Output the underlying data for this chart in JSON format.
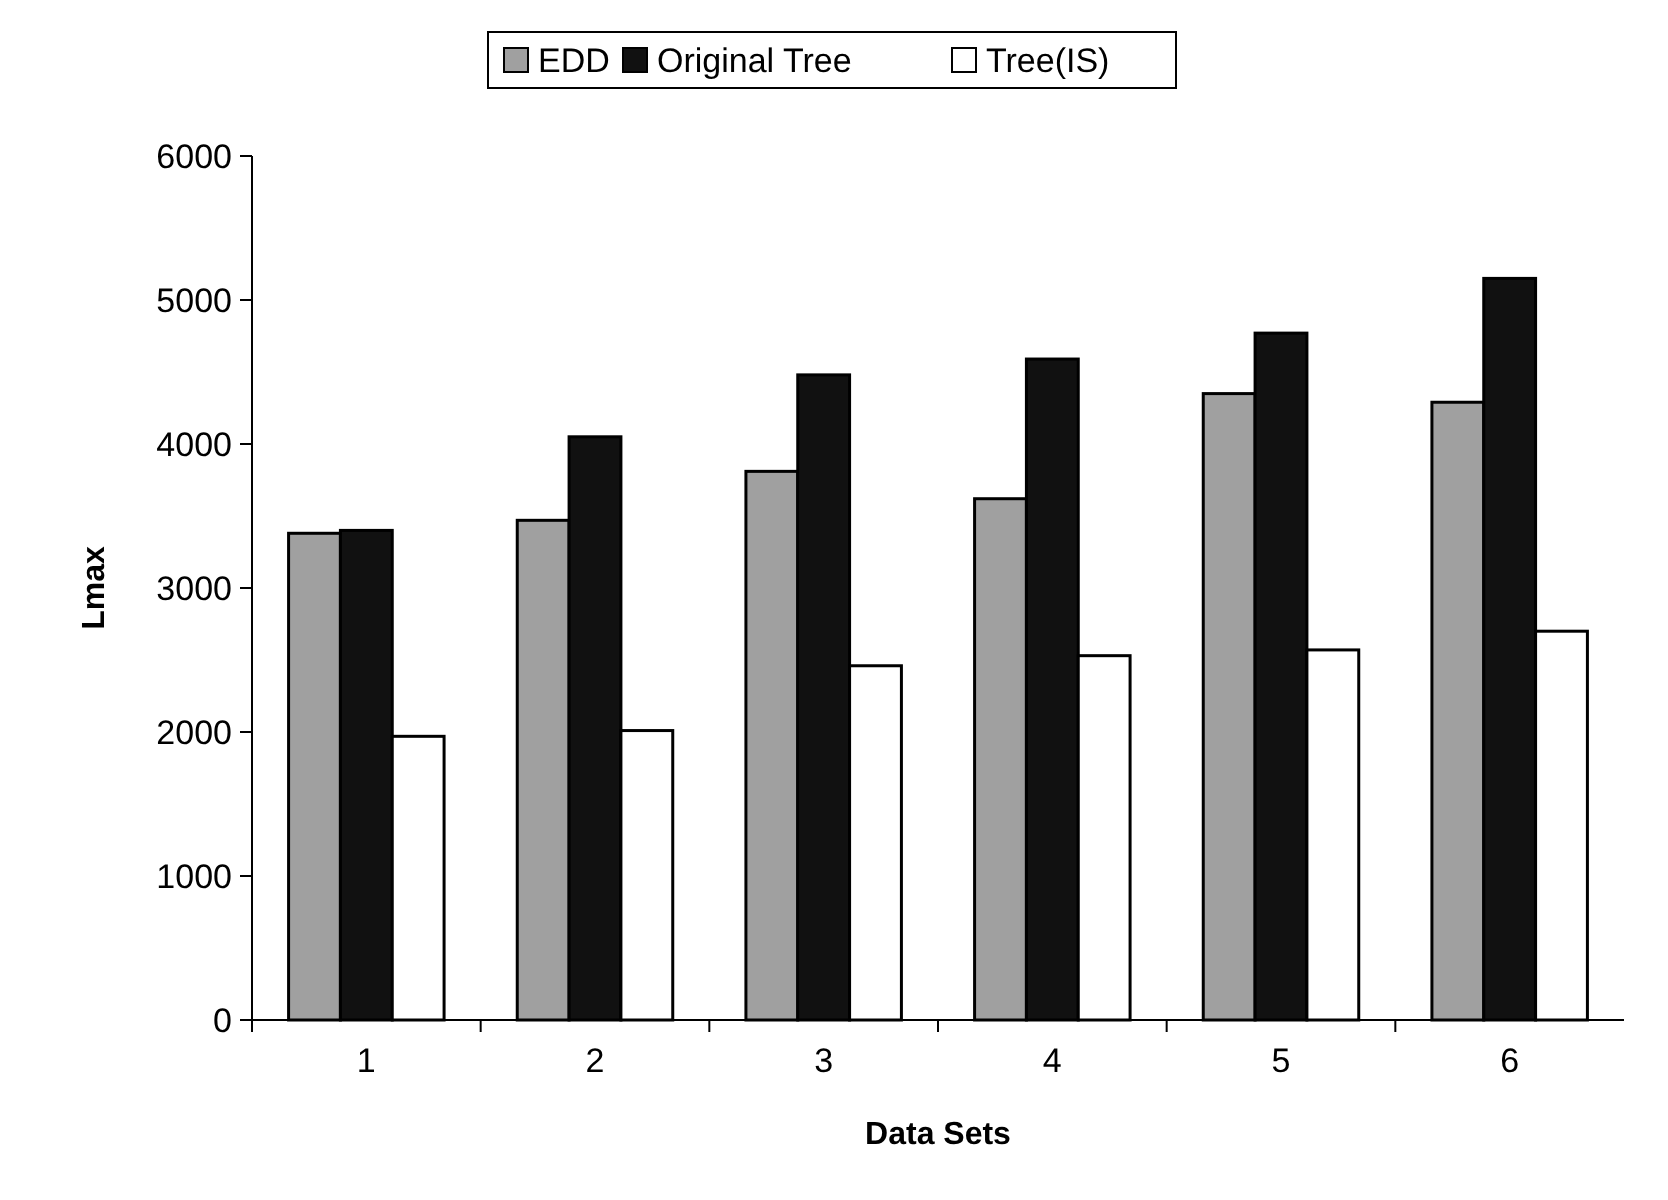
{
  "chart_data": {
    "type": "bar",
    "xlabel": "Data Sets",
    "ylabel": "Lmax",
    "categories": [
      "1",
      "2",
      "3",
      "4",
      "5",
      "6"
    ],
    "series": [
      {
        "name": "EDD",
        "color": "#a0a0a0",
        "values": [
          3380,
          3470,
          3810,
          3620,
          4350,
          4290
        ]
      },
      {
        "name": "Original Tree",
        "color": "#111111",
        "values": [
          3400,
          4050,
          4480,
          4590,
          4770,
          5150
        ]
      },
      {
        "name": "Tree(IS)",
        "color": "#ffffff",
        "values": [
          1970,
          2010,
          2460,
          2530,
          2570,
          2700
        ]
      }
    ],
    "ylim": [
      0,
      6000
    ],
    "yticks": [
      0,
      1000,
      2000,
      3000,
      4000,
      5000,
      6000
    ],
    "legend": "top"
  }
}
